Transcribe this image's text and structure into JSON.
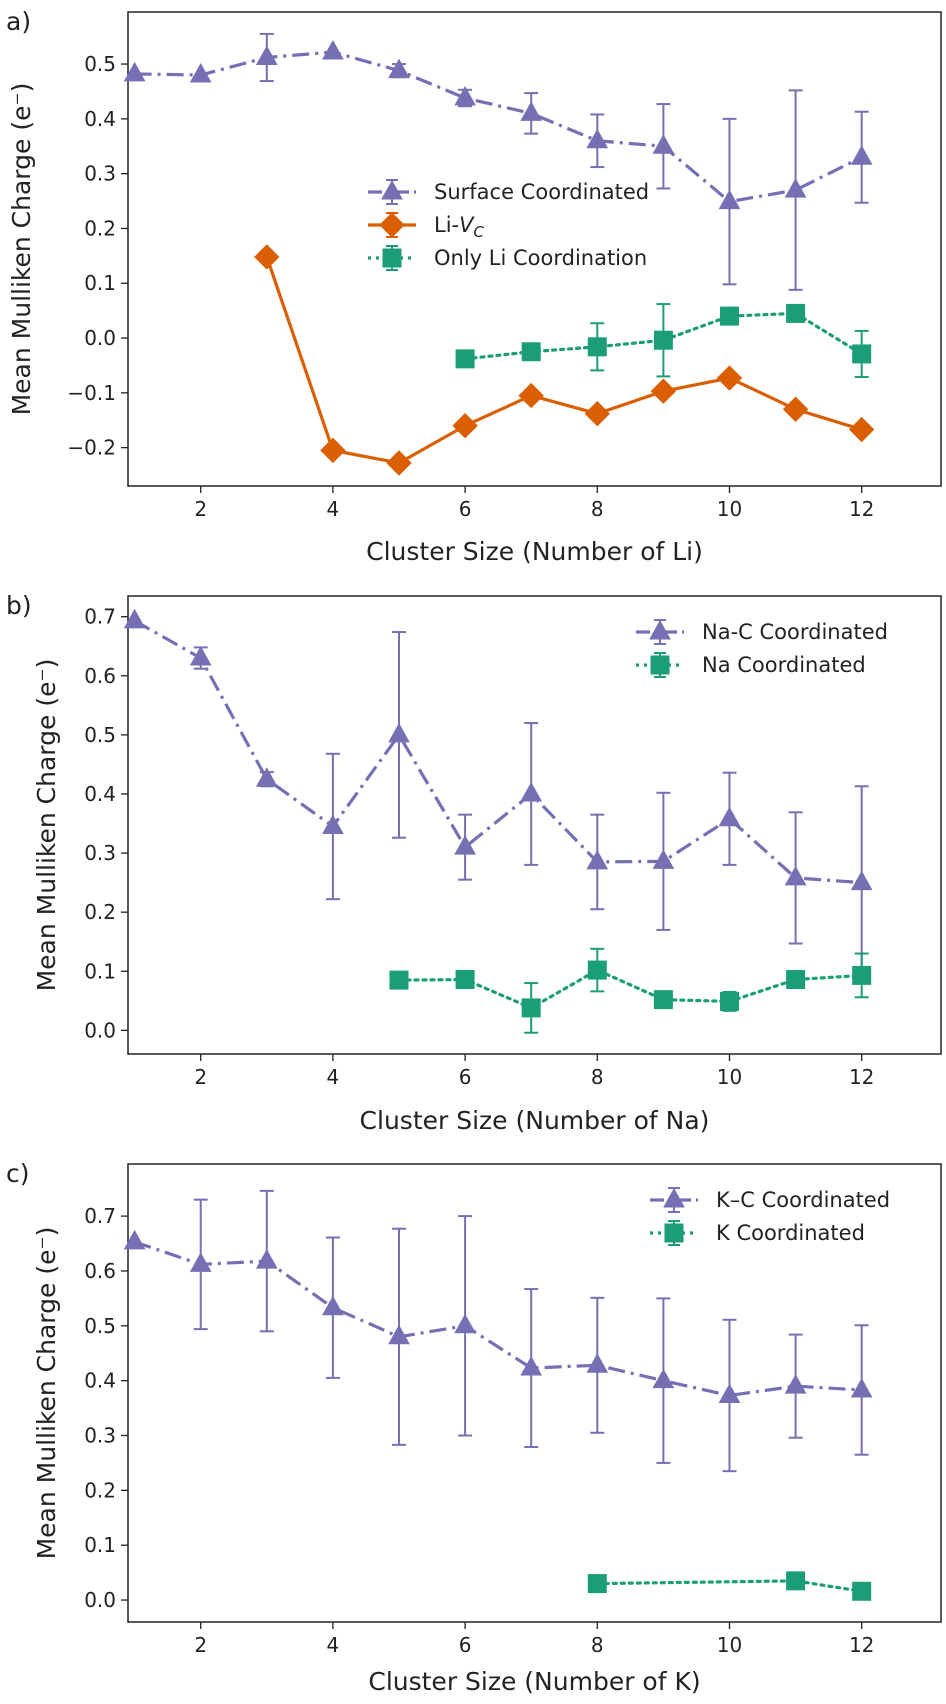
{
  "figure": {
    "panels": [
      {
        "label": "a)",
        "legend_labels": [
          "Surface Coordinated",
          "Li-V",
          "Only Li Coordination"
        ],
        "legend_sub": "C"
      },
      {
        "label": "b)",
        "legend_labels": [
          "Na-C Coordinated",
          "Na Coordinated"
        ]
      },
      {
        "label": "c)",
        "legend_labels": [
          "K–C Coordinated",
          "K Coordinated"
        ]
      }
    ]
  },
  "colors": {
    "purple": "#7570b3",
    "orange": "#d95f02",
    "green": "#1b9e77"
  },
  "chart_data": [
    {
      "type": "line",
      "xlabel": "Cluster Size (Number of Li)",
      "ylabel": "Mean Mulliken Charge (e⁻)",
      "xlim": [
        0.9,
        13.2
      ],
      "ylim": [
        -0.27,
        0.595
      ],
      "xticks": [
        2,
        4,
        6,
        8,
        10,
        12
      ],
      "yticks": [
        -0.2,
        -0.1,
        0.0,
        0.1,
        0.2,
        0.3,
        0.4,
        0.5
      ],
      "ytick_labels": [
        "−0.2",
        "−0.1",
        "0.0",
        "0.1",
        "0.2",
        "0.3",
        "0.4",
        "0.5"
      ],
      "legend_position": "center-right",
      "series": [
        {
          "name": "Surface Coordinated",
          "color": "#7570b3",
          "marker": "triangle",
          "linestyle": "dashdot",
          "x": [
            1,
            2,
            3,
            4,
            5,
            6,
            7,
            8,
            9,
            10,
            11,
            12
          ],
          "y": [
            0.482,
            0.48,
            0.512,
            0.522,
            0.488,
            0.438,
            0.41,
            0.36,
            0.35,
            0.249,
            0.27,
            0.33
          ],
          "err": [
            0,
            0,
            0.043,
            0,
            0.012,
            0.015,
            0.037,
            0.048,
            0.077,
            0.151,
            0.182,
            0.083
          ]
        },
        {
          "name": "Li-V",
          "color": "#d95f02",
          "marker": "diamond",
          "linestyle": "solid",
          "x": [
            3,
            4,
            5,
            6,
            7,
            8,
            9,
            10,
            11,
            12
          ],
          "y": [
            0.148,
            -0.205,
            -0.228,
            -0.16,
            -0.105,
            -0.138,
            -0.097,
            -0.073,
            -0.13,
            -0.167
          ],
          "err": [
            0,
            0,
            0,
            0,
            0,
            0,
            0,
            0,
            0,
            0
          ]
        },
        {
          "name": "Only Li Coordination",
          "color": "#1b9e77",
          "marker": "square",
          "linestyle": "dotted",
          "x": [
            6,
            7,
            8,
            9,
            10,
            11,
            12
          ],
          "y": [
            -0.038,
            -0.025,
            -0.016,
            -0.004,
            0.04,
            0.045,
            -0.029
          ],
          "err": [
            0,
            0,
            0.043,
            0.066,
            0.015,
            0,
            0.042
          ]
        }
      ]
    },
    {
      "type": "line",
      "xlabel": "Cluster Size (Number of Na)",
      "ylabel": "Mean Mulliken Charge (e⁻)",
      "xlim": [
        0.9,
        13.2
      ],
      "ylim": [
        -0.04,
        0.735
      ],
      "xticks": [
        2,
        4,
        6,
        8,
        10,
        12
      ],
      "yticks": [
        0.0,
        0.1,
        0.2,
        0.3,
        0.4,
        0.5,
        0.6,
        0.7
      ],
      "ytick_labels": [
        "0.0",
        "0.1",
        "0.2",
        "0.3",
        "0.4",
        "0.5",
        "0.6",
        "0.7"
      ],
      "legend_position": "top-right",
      "series": [
        {
          "name": "Na-C Coordinated",
          "color": "#7570b3",
          "marker": "triangle",
          "linestyle": "dashdot",
          "x": [
            1,
            2,
            3,
            4,
            5,
            6,
            7,
            8,
            9,
            10,
            11,
            12
          ],
          "y": [
            0.693,
            0.63,
            0.425,
            0.345,
            0.5,
            0.31,
            0.4,
            0.285,
            0.286,
            0.358,
            0.258,
            0.25
          ],
          "err": [
            0,
            0.018,
            0.012,
            0.123,
            0.174,
            0.055,
            0.12,
            0.08,
            0.116,
            0.078,
            0.111,
            0.163
          ]
        },
        {
          "name": "Na Coordinated",
          "color": "#1b9e77",
          "marker": "square",
          "linestyle": "dotted",
          "x": [
            5,
            6,
            7,
            8,
            9,
            10,
            11,
            12
          ],
          "y": [
            0.085,
            0.086,
            0.038,
            0.102,
            0.052,
            0.049,
            0.086,
            0.093
          ],
          "err": [
            0,
            0,
            0.042,
            0.036,
            0,
            0.016,
            0,
            0.037
          ]
        }
      ]
    },
    {
      "type": "line",
      "xlabel": "Cluster Size (Number of K)",
      "ylabel": "Mean Mulliken Charge (e⁻)",
      "xlim": [
        0.9,
        13.2
      ],
      "ylim": [
        -0.04,
        0.795
      ],
      "xticks": [
        2,
        4,
        6,
        8,
        10,
        12
      ],
      "yticks": [
        0.0,
        0.1,
        0.2,
        0.3,
        0.4,
        0.5,
        0.6,
        0.7
      ],
      "ytick_labels": [
        "0.0",
        "0.1",
        "0.2",
        "0.3",
        "0.4",
        "0.5",
        "0.6",
        "0.7"
      ],
      "legend_position": "top-right",
      "series": [
        {
          "name": "K–C Coordinated",
          "color": "#7570b3",
          "marker": "triangle",
          "linestyle": "dashdot",
          "x": [
            1,
            2,
            3,
            4,
            5,
            6,
            7,
            8,
            9,
            10,
            11,
            12
          ],
          "y": [
            0.653,
            0.612,
            0.618,
            0.533,
            0.48,
            0.5,
            0.423,
            0.428,
            0.4,
            0.373,
            0.39,
            0.383
          ],
          "err": [
            0,
            0.118,
            0.128,
            0.128,
            0.197,
            0.2,
            0.144,
            0.123,
            0.15,
            0.138,
            0.094,
            0.118
          ]
        },
        {
          "name": "K Coordinated",
          "color": "#1b9e77",
          "marker": "square",
          "linestyle": "dotted",
          "x": [
            8,
            11,
            12
          ],
          "y": [
            0.03,
            0.035,
            0.016
          ],
          "err": [
            0,
            0,
            0
          ]
        }
      ]
    }
  ]
}
